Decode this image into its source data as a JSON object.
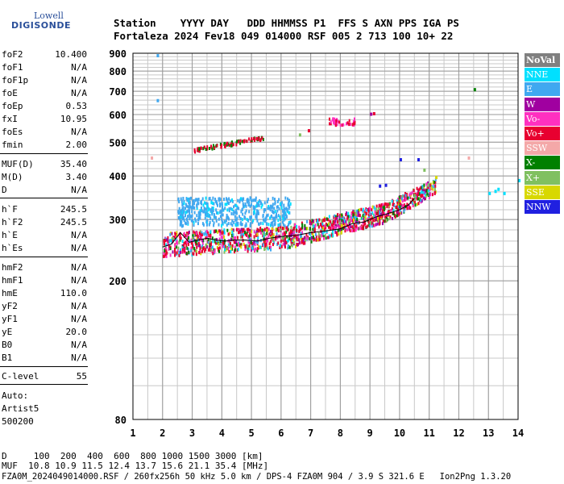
{
  "logo": {
    "line1": "Lowell",
    "line2": "DIGISONDE"
  },
  "header": {
    "labels": "Station    YYYY DAY   DDD HHMMSS P1  FFS S AXN PPS IGA PS",
    "values": "Fortaleza 2024 Fev18 049 014000 RSF 005 2 713 100 10+ 22"
  },
  "params": [
    {
      "label": "foF2",
      "value": "10.400"
    },
    {
      "label": "foF1",
      "value": "N/A"
    },
    {
      "label": "foF1p",
      "value": "N/A"
    },
    {
      "label": "foE",
      "value": "N/A"
    },
    {
      "label": "foEp",
      "value": "0.53"
    },
    {
      "label": "fxI",
      "value": "10.95"
    },
    {
      "label": "foEs",
      "value": "N/A"
    },
    {
      "label": "fmin",
      "value": "2.00"
    },
    {
      "label": "MUF(D)",
      "value": "35.40"
    },
    {
      "label": "M(D)",
      "value": "3.40"
    },
    {
      "label": "D",
      "value": "N/A"
    },
    {
      "label": "h`F",
      "value": "245.5"
    },
    {
      "label": "h`F2",
      "value": "245.5"
    },
    {
      "label": "h`E",
      "value": "N/A"
    },
    {
      "label": "h`Es",
      "value": "N/A"
    },
    {
      "label": "hmF2",
      "value": "N/A"
    },
    {
      "label": "hmF1",
      "value": "N/A"
    },
    {
      "label": "hmE",
      "value": "110.0"
    },
    {
      "label": "yF2",
      "value": "N/A"
    },
    {
      "label": "yF1",
      "value": "N/A"
    },
    {
      "label": "yE",
      "value": "20.0"
    },
    {
      "label": "B0",
      "value": "N/A"
    },
    {
      "label": "B1",
      "value": "N/A"
    },
    {
      "label": "C-level",
      "value": "55"
    }
  ],
  "auto": {
    "line1": "Auto:",
    "line2": "Artist5",
    "line3": "500200"
  },
  "legend": [
    {
      "label": "NoVal",
      "color": "#808080"
    },
    {
      "label": "NNE",
      "color": "#00e0ff"
    },
    {
      "label": "E",
      "color": "#40a8f0"
    },
    {
      "label": "W",
      "color": "#a000a0"
    },
    {
      "label": "Vo-",
      "color": "#ff30c0"
    },
    {
      "label": "Vo+",
      "color": "#e80030"
    },
    {
      "label": "SSW",
      "color": "#f4a8a8"
    },
    {
      "label": "X-",
      "color": "#008000"
    },
    {
      "label": "X+",
      "color": "#80c060"
    },
    {
      "label": "SSE",
      "color": "#d8d800"
    },
    {
      "label": "NNW",
      "color": "#2020e0"
    }
  ],
  "chart_data": {
    "type": "scatter",
    "title": "",
    "xlabel": "",
    "ylabel": "",
    "xlim": [
      1,
      14
    ],
    "ylim": [
      80,
      900
    ],
    "y_scale": "log",
    "x_ticks": [
      1,
      2,
      3,
      4,
      5,
      6,
      7,
      8,
      9,
      10,
      11,
      12,
      13,
      14
    ],
    "y_ticks": [
      80,
      200,
      300,
      400,
      500,
      600,
      700,
      800,
      900
    ],
    "grid": true,
    "trace": {
      "name": "",
      "x": [
        2.0,
        2.3,
        2.6,
        2.9,
        3.2,
        3.5,
        3.8,
        4.1,
        4.4,
        4.8,
        5.2,
        5.6,
        6.0,
        6.5,
        7.0,
        7.5,
        8.0,
        8.4,
        8.8,
        9.2,
        9.6,
        10.0,
        10.3,
        10.5
      ],
      "y": [
        250,
        255,
        275,
        258,
        262,
        265,
        262,
        260,
        262,
        262,
        260,
        265,
        268,
        270,
        275,
        278,
        282,
        292,
        295,
        305,
        312,
        320,
        330,
        345
      ]
    }
  },
  "bottom": {
    "distance": "D     100  200  400  600  800 1000 1500 3000 [km]",
    "muf": "MUF  10.8 10.9 11.5 12.4 13.7 15.6 21.1 35.4 [MHz]",
    "file": "FZA0M_2024049014000.RSF / 260fx256h 50 kHz 5.0 km / DPS-4 FZA0M 904 / 3.9 S 321.6 E   Ion2Png 1.3.20"
  }
}
